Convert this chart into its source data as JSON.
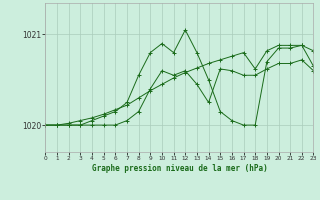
{
  "title": "Graphe pression niveau de la mer (hPa)",
  "bg_color": "#cceedd",
  "grid_color": "#aaccbb",
  "line_color": "#1a6b1a",
  "xlim": [
    0,
    23
  ],
  "ylim": [
    1019.7,
    1021.35
  ],
  "yticks": [
    1020,
    1021
  ],
  "ytick_labels": [
    "1020",
    "1021"
  ],
  "xticks": [
    0,
    1,
    2,
    3,
    4,
    5,
    6,
    7,
    8,
    9,
    10,
    11,
    12,
    13,
    14,
    15,
    16,
    17,
    18,
    19,
    20,
    21,
    22,
    23
  ],
  "series1": [
    1020.0,
    1020.0,
    1020.0,
    1020.0,
    1020.05,
    1020.1,
    1020.15,
    1020.25,
    1020.55,
    1020.8,
    1020.9,
    1020.8,
    1021.05,
    1020.8,
    1020.5,
    1020.15,
    1020.05,
    1020.0,
    1020.0,
    1020.7,
    1020.85,
    1020.85,
    1020.88,
    1020.65
  ],
  "series2": [
    1020.0,
    1020.0,
    1020.02,
    1020.05,
    1020.08,
    1020.12,
    1020.17,
    1020.22,
    1020.3,
    1020.38,
    1020.45,
    1020.52,
    1020.58,
    1020.63,
    1020.68,
    1020.72,
    1020.76,
    1020.8,
    1020.62,
    1020.82,
    1020.88,
    1020.88,
    1020.88,
    1020.82
  ],
  "series3": [
    1020.0,
    1020.0,
    1020.0,
    1020.0,
    1020.0,
    1020.0,
    1020.0,
    1020.05,
    1020.15,
    1020.4,
    1020.6,
    1020.55,
    1020.6,
    1020.45,
    1020.25,
    1020.62,
    1020.6,
    1020.55,
    1020.55,
    1020.62,
    1020.68,
    1020.68,
    1020.72,
    1020.6
  ]
}
